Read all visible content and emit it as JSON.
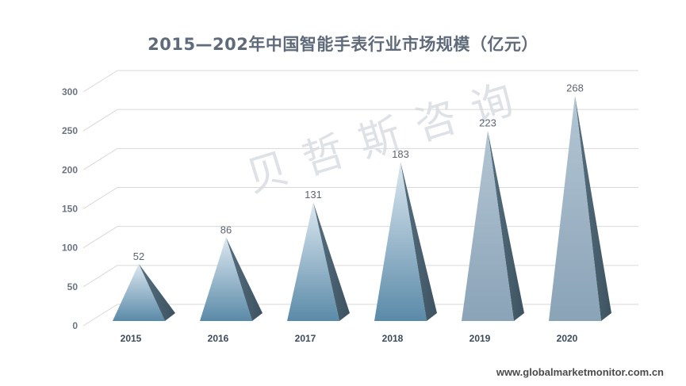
{
  "chart_data": {
    "type": "bar",
    "title": "2015—202年中国智能手表行业市场规模（亿元）",
    "categories": [
      "2015",
      "2016",
      "2017",
      "2018",
      "2019",
      "2020"
    ],
    "values": [
      52,
      86,
      131,
      183,
      223,
      268
    ],
    "ylim": [
      0,
      300
    ],
    "yticks": [
      0,
      50,
      100,
      150,
      200,
      250,
      300
    ],
    "grid": true,
    "bar_shape": "pyramid"
  },
  "watermark": "贝哲斯咨询",
  "footer": "www.globalmarketmonitor.com.cn",
  "colors": {
    "pyramid_dark_front": "#5a8aa8",
    "pyramid_light_front": "#8fa7bb",
    "pyramid_side": "#4a6070",
    "grid": "#d9d9d9"
  }
}
